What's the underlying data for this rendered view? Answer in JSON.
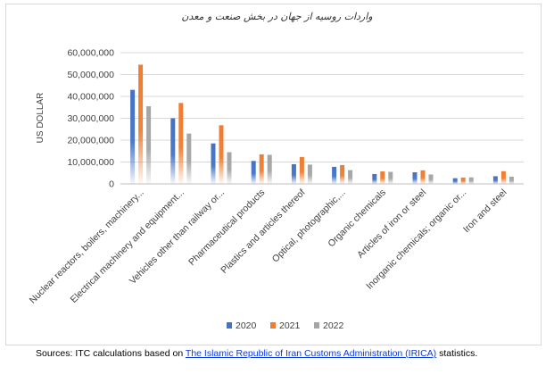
{
  "title": "واردات روسیه از جهان در بخش صنعت و معدن",
  "sources": {
    "prefix": "Sources: ITC calculations based on ",
    "link_text": "The Islamic Republic of Iran Customs Administration (IRICA)",
    "suffix": " statistics."
  },
  "chart_data": {
    "type": "bar",
    "title": "واردات روسیه از جهان در بخش صنعت و معدن",
    "ylabel": "US DOLLAR",
    "xlabel": "",
    "ylim": [
      0,
      60000000
    ],
    "yticks": [
      "0",
      "10,000,000",
      "20,000,000",
      "30,000,000",
      "40,000,000",
      "50,000,000",
      "60,000,000"
    ],
    "grid": true,
    "legend": "bottom",
    "categories": [
      "Nuclear reactors, boilers, machinery...",
      "Electrical machinery and equipment...",
      "Vehicles other than railway or...",
      "Pharmaceutical products",
      "Plastics and articles thereof",
      "Optical, photographic,...",
      "Organic chemicals",
      "Articles of iron or steel",
      "Inorganic chemicals; organic or...",
      "Iron and steel"
    ],
    "series": [
      {
        "name": "2020",
        "color": "#4472c4",
        "values": [
          43000000,
          30000000,
          18500000,
          10500000,
          9000000,
          7800000,
          4500000,
          5300000,
          2600000,
          3500000
        ]
      },
      {
        "name": "2021",
        "color": "#ed7d31",
        "values": [
          54500000,
          37000000,
          26800000,
          13500000,
          12300000,
          8600000,
          5700000,
          6200000,
          2900000,
          5800000
        ]
      },
      {
        "name": "2022",
        "color": "#a5a5a5",
        "values": [
          35500000,
          23000000,
          14500000,
          13300000,
          8800000,
          6300000,
          5500000,
          4300000,
          3000000,
          3300000
        ]
      }
    ]
  }
}
